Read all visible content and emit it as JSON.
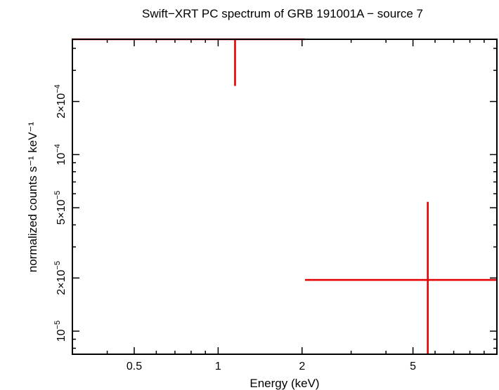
{
  "chart_data": {
    "type": "scatter",
    "title": "Swift−XRT PC spectrum of GRB 191001A − source 7",
    "xlabel": "Energy (keV)",
    "ylabel": "normalized counts s⁻¹ keV⁻¹",
    "x_scale": "log",
    "y_scale": "log",
    "xlim": [
      0.3,
      10
    ],
    "ylim": [
      7.4e-06,
      0.00045
    ],
    "x_ticks": [
      {
        "value": 0.5,
        "label": "0.5"
      },
      {
        "value": 1,
        "label": "1"
      },
      {
        "value": 2,
        "label": "2"
      },
      {
        "value": 5,
        "label": "5"
      }
    ],
    "y_ticks": [
      {
        "value": 1e-05,
        "mantissa": "",
        "exp": "−5"
      },
      {
        "value": 2e-05,
        "mantissa": "2×",
        "exp": "−5"
      },
      {
        "value": 5e-05,
        "mantissa": "5×",
        "exp": "−5"
      },
      {
        "value": 0.0001,
        "mantissa": "",
        "exp": "−4"
      },
      {
        "value": 0.0002,
        "mantissa": "2×",
        "exp": "−4"
      }
    ],
    "grid": false,
    "points": [
      {
        "x": 1.15,
        "x_low": 0.3,
        "x_high": 2.05,
        "y": 0.00045,
        "y_low": 0.000245,
        "y_high": 0.00045
      },
      {
        "x": 5.65,
        "x_low": 2.05,
        "x_high": 10,
        "y": 1.95e-05,
        "y_low": 7.4e-06,
        "y_high": 5.4e-05
      }
    ],
    "color": "#e50000"
  }
}
